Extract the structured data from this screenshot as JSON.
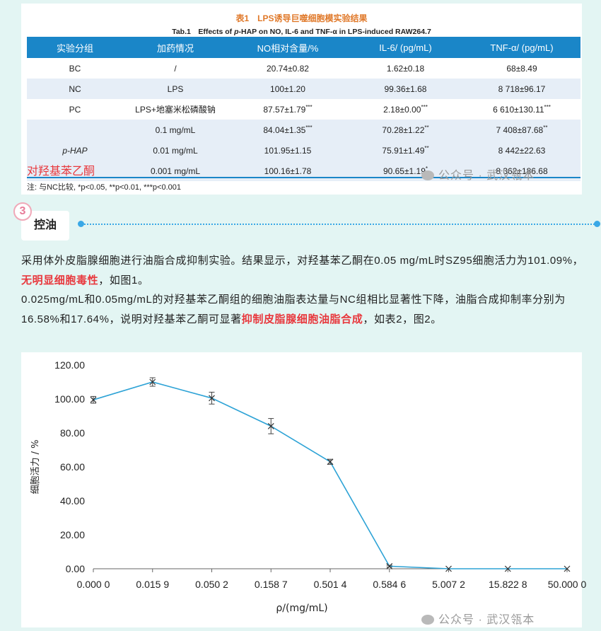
{
  "table": {
    "title": "表1　LPS诱导巨噬细胞模实验结果",
    "subtitle_prefix": "Tab.1　Effects of ",
    "subtitle_italic": "p",
    "subtitle_suffix": "-HAP on NO, IL-6 and TNF-α in LPS-induced RAW264.7",
    "headers": [
      "实验分组",
      "加药情况",
      "NO相对含量/%",
      "IL-6/ (pg/mL)",
      "TNF-α/ (pg/mL)"
    ],
    "rows": [
      {
        "group": "BC",
        "dose": "/",
        "no": "20.74±0.82",
        "no_sup": "",
        "il6": "1.62±0.18",
        "il6_sup": "",
        "tnf": "68±8.49",
        "tnf_sup": ""
      },
      {
        "group": "NC",
        "dose": "LPS",
        "no": "100±1.20",
        "no_sup": "",
        "il6": "99.36±1.68",
        "il6_sup": "",
        "tnf": "8 718±96.17",
        "tnf_sup": ""
      },
      {
        "group": "PC",
        "dose": "LPS+地塞米松磷酸钠",
        "no": "87.57±1.79",
        "no_sup": "***",
        "il6": "2.18±0.00",
        "il6_sup": "***",
        "tnf": "6 610±130.11",
        "tnf_sup": "***"
      },
      {
        "group": "",
        "dose": "0.1 mg/mL",
        "no": "84.04±1.35",
        "no_sup": "***",
        "il6": "70.28±1.22",
        "il6_sup": "**",
        "tnf": "7 408±87.68",
        "tnf_sup": "**"
      },
      {
        "group": "p-HAP",
        "dose": "0.01 mg/mL",
        "no": "101.95±1.15",
        "no_sup": "",
        "il6": "75.91±1.49",
        "il6_sup": "**",
        "tnf": "8 442±22.63",
        "tnf_sup": ""
      },
      {
        "group": "",
        "dose": "0.001 mg/mL",
        "no": "100.16±1.78",
        "no_sup": "",
        "il6": "90.65±1.19",
        "il6_sup": "*",
        "tnf": "8 362±186.68",
        "tnf_sup": ""
      }
    ],
    "red_label": "对羟基苯乙酮",
    "note": "注: 与NC比较, *p<0.05, **p<0.01, ***p<0.001"
  },
  "watermark": "公众号 · 武汉瓴本",
  "section": {
    "number": "3",
    "title": "控油"
  },
  "paragraph": {
    "p1_a": "采用体外皮脂腺细胞进行油脂合成抑制实验。结果显示，对羟基苯乙酮在0.05 mg/mL时SZ95细胞活力为101.09%，",
    "p1_hl": "无明显细胞毒性",
    "p1_b": "，如图1。",
    "p2_a": "0.025mg/mL和0.05mg/mL的对羟基苯乙酮组的细胞油脂表达量与NC组相比显著性下降，油脂合成抑制率分别为16.58%和17.64%，说明对羟基苯乙酮可显著",
    "p2_hl": "抑制皮脂腺细胞油脂合成",
    "p2_b": "，如表2，图2。"
  },
  "colors": {
    "accent": "#1a86c8",
    "highlight": "#e8383d",
    "line": "#2ea3d6",
    "background": "#e3f5f3"
  },
  "chart_data": {
    "type": "line",
    "categories": [
      "0.000 0",
      "0.015 9",
      "0.050 2",
      "0.158 7",
      "0.501 4",
      "0.584 6",
      "5.007 2",
      "15.822 8",
      "50.000 0"
    ],
    "series": [
      {
        "values": [
          99.5,
          110.0,
          100.5,
          84.0,
          63.0,
          1.5,
          0.0,
          0.0,
          0.0
        ],
        "errors": [
          2.0,
          2.5,
          3.5,
          4.5,
          1.5,
          0.5,
          0.0,
          0.0,
          0.0
        ]
      }
    ],
    "ylim": [
      0,
      120
    ],
    "yticks": [
      "0.00",
      "20.00",
      "40.00",
      "60.00",
      "80.00",
      "100.00",
      "120.00"
    ],
    "ylabel": "细胞活力 / %",
    "xlabel": "ρ/(mg/mL)",
    "grid": false
  }
}
